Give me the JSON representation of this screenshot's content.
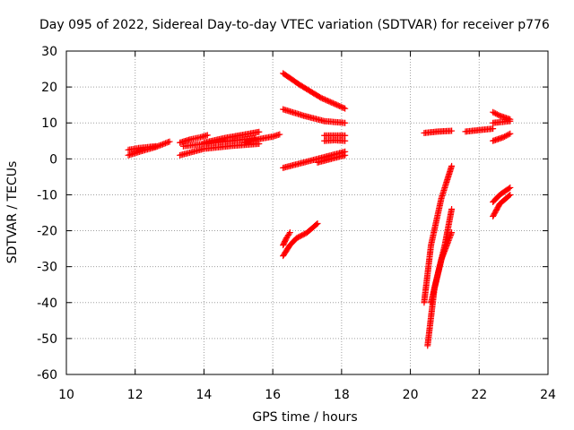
{
  "chart_data": {
    "type": "scatter",
    "title": "Day 095 of 2022, Sidereal Day-to-day VTEC variation (SDTVAR) for receiver p776",
    "xlabel": "GPS time / hours",
    "ylabel": "SDTVAR / TECUs",
    "xlim": [
      10,
      24
    ],
    "ylim": [
      -60,
      30
    ],
    "xticks": [
      "10",
      "12",
      "14",
      "16",
      "18",
      "20",
      "22",
      "24"
    ],
    "yticks": [
      "30",
      "20",
      "10",
      "0",
      "-10",
      "-20",
      "-30",
      "-40",
      "-50",
      "-60"
    ],
    "grid": true,
    "marker": "plus",
    "color": "#ff0000",
    "series": [
      {
        "x": [
          11.8,
          12.2,
          12.6,
          13.0
        ],
        "y": [
          1.0,
          2.2,
          3.3,
          4.8
        ]
      },
      {
        "x": [
          11.8,
          12.1,
          12.4,
          12.6
        ],
        "y": [
          2.5,
          3.0,
          3.3,
          3.5
        ]
      },
      {
        "x": [
          13.3,
          13.6,
          13.9,
          14.1
        ],
        "y": [
          4.5,
          5.4,
          6.0,
          6.6
        ]
      },
      {
        "x": [
          13.3,
          14.0,
          14.8,
          15.6
        ],
        "y": [
          1.0,
          2.8,
          3.6,
          4.2
        ]
      },
      {
        "x": [
          13.4,
          14.0,
          14.8,
          15.5
        ],
        "y": [
          3.5,
          4.2,
          5.0,
          5.8
        ]
      },
      {
        "x": [
          14.0,
          14.6,
          15.2,
          15.6
        ],
        "y": [
          4.5,
          5.8,
          6.8,
          7.5
        ]
      },
      {
        "x": [
          15.2,
          15.6,
          16.0,
          16.2
        ],
        "y": [
          4.5,
          5.5,
          6.2,
          6.8
        ]
      },
      {
        "x": [
          16.3,
          16.8,
          17.4,
          18.1
        ],
        "y": [
          23.8,
          20.5,
          17.0,
          14.0
        ]
      },
      {
        "x": [
          16.3,
          16.9,
          17.5,
          18.1
        ],
        "y": [
          13.8,
          12.0,
          10.5,
          10.0
        ]
      },
      {
        "x": [
          16.3,
          16.9,
          17.5,
          18.1
        ],
        "y": [
          -2.5,
          -1.0,
          0.5,
          2.0
        ]
      },
      {
        "x": [
          17.3,
          17.7,
          18.1
        ],
        "y": [
          -1.0,
          0.0,
          1.0
        ]
      },
      {
        "x": [
          17.5,
          17.8,
          18.1
        ],
        "y": [
          6.5,
          6.5,
          6.5
        ]
      },
      {
        "x": [
          17.5,
          17.8,
          18.1
        ],
        "y": [
          5.0,
          5.2,
          5.0
        ]
      },
      {
        "x": [
          16.3,
          16.5,
          16.7,
          17.0,
          17.3
        ],
        "y": [
          -27.0,
          -24.0,
          -22.0,
          -20.5,
          -18.0
        ]
      },
      {
        "x": [
          16.3,
          16.4,
          16.5
        ],
        "y": [
          -24.0,
          -22.0,
          -20.5
        ]
      },
      {
        "x": [
          20.4,
          20.6,
          20.9,
          21.2
        ],
        "y": [
          -40.0,
          -24.0,
          -11.0,
          -2.0
        ]
      },
      {
        "x": [
          20.5,
          20.7,
          21.0,
          21.2
        ],
        "y": [
          -52.0,
          -36.0,
          -24.0,
          -14.0
        ]
      },
      {
        "x": [
          20.6,
          20.9,
          21.2
        ],
        "y": [
          -40.0,
          -28.0,
          -20.5
        ]
      },
      {
        "x": [
          20.4,
          20.8,
          21.2
        ],
        "y": [
          7.2,
          7.6,
          7.8
        ]
      },
      {
        "x": [
          21.6,
          22.0,
          22.4
        ],
        "y": [
          7.6,
          8.0,
          8.4
        ]
      },
      {
        "x": [
          22.4,
          22.6,
          22.9
        ],
        "y": [
          13.0,
          12.0,
          11.0
        ]
      },
      {
        "x": [
          22.4,
          22.6,
          22.9
        ],
        "y": [
          10.0,
          10.2,
          10.5
        ]
      },
      {
        "x": [
          22.4,
          22.7,
          22.9
        ],
        "y": [
          5.0,
          6.0,
          7.0
        ]
      },
      {
        "x": [
          22.4,
          22.6,
          22.9
        ],
        "y": [
          -12.0,
          -10.0,
          -8.0
        ]
      },
      {
        "x": [
          22.4,
          22.6,
          22.9
        ],
        "y": [
          -16.0,
          -12.5,
          -10.0
        ]
      }
    ]
  }
}
